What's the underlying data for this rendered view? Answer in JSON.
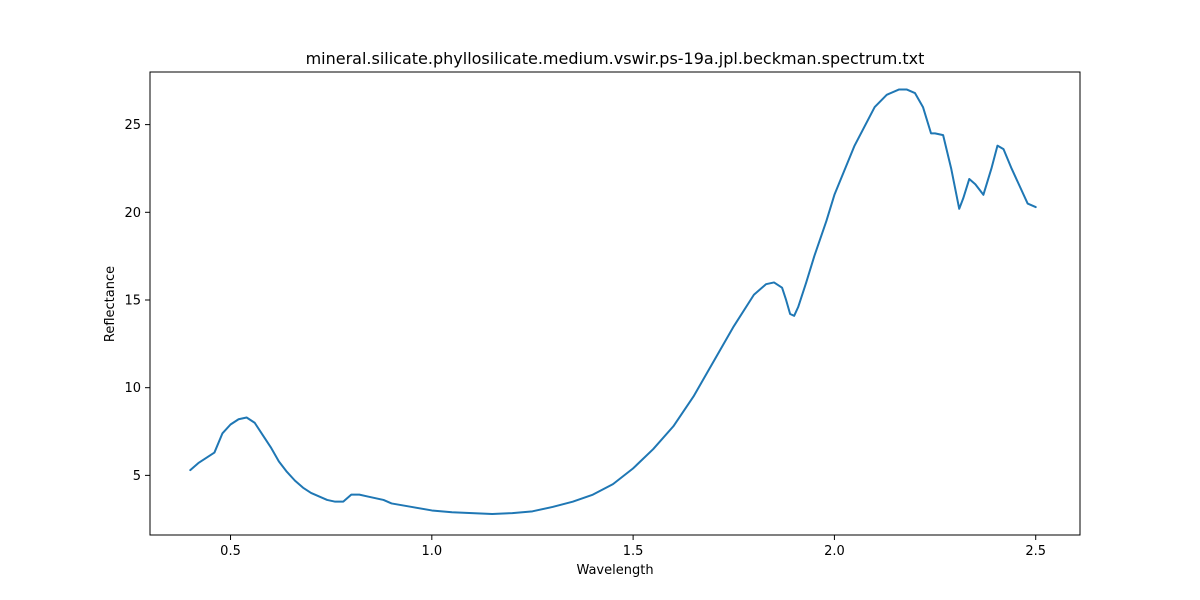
{
  "chart_data": {
    "type": "line",
    "title": "mineral.silicate.phyllosilicate.medium.vswir.ps-19a.jpl.beckman.spectrum.txt",
    "xlabel": "Wavelength",
    "ylabel": "Reflectance",
    "xlim": [
      0.3,
      2.61
    ],
    "ylim": [
      1.6,
      28.0
    ],
    "xticks": [
      0.5,
      1.0,
      1.5,
      2.0,
      2.5
    ],
    "xtick_labels": [
      "0.5",
      "1.0",
      "1.5",
      "2.0",
      "2.5"
    ],
    "yticks": [
      5,
      10,
      15,
      20,
      25
    ],
    "ytick_labels": [
      "5",
      "10",
      "15",
      "20",
      "25"
    ],
    "grid": false,
    "line_color": "#1f77b4",
    "series": [
      {
        "x": [
          0.4,
          0.42,
          0.44,
          0.46,
          0.48,
          0.5,
          0.52,
          0.54,
          0.56,
          0.58,
          0.6,
          0.62,
          0.64,
          0.66,
          0.68,
          0.7,
          0.72,
          0.74,
          0.76,
          0.78,
          0.79,
          0.8,
          0.82,
          0.84,
          0.86,
          0.88,
          0.9,
          0.95,
          1.0,
          1.05,
          1.1,
          1.15,
          1.2,
          1.25,
          1.3,
          1.35,
          1.4,
          1.45,
          1.5,
          1.55,
          1.6,
          1.65,
          1.7,
          1.75,
          1.8,
          1.83,
          1.85,
          1.87,
          1.88,
          1.89,
          1.9,
          1.91,
          1.93,
          1.95,
          1.98,
          2.0,
          2.05,
          2.1,
          2.13,
          2.16,
          2.18,
          2.2,
          2.22,
          2.24,
          2.25,
          2.27,
          2.29,
          2.31,
          2.32,
          2.335,
          2.35,
          2.37,
          2.39,
          2.405,
          2.42,
          2.44,
          2.46,
          2.48,
          2.5
        ],
        "y": [
          5.3,
          5.7,
          6.0,
          6.3,
          7.4,
          7.9,
          8.2,
          8.3,
          8.0,
          7.3,
          6.6,
          5.8,
          5.2,
          4.7,
          4.3,
          4.0,
          3.8,
          3.6,
          3.5,
          3.5,
          3.7,
          3.9,
          3.9,
          3.8,
          3.7,
          3.6,
          3.4,
          3.2,
          3.0,
          2.9,
          2.85,
          2.8,
          2.85,
          2.95,
          3.2,
          3.5,
          3.9,
          4.5,
          5.4,
          6.5,
          7.8,
          9.5,
          11.5,
          13.5,
          15.3,
          15.9,
          16.0,
          15.7,
          15.0,
          14.2,
          14.1,
          14.6,
          16.0,
          17.5,
          19.5,
          21.0,
          23.8,
          26.0,
          26.7,
          27.0,
          27.0,
          26.8,
          26.0,
          24.5,
          24.5,
          24.4,
          22.5,
          20.2,
          20.8,
          21.9,
          21.6,
          21.0,
          22.5,
          23.8,
          23.6,
          22.5,
          21.5,
          20.5,
          20.3
        ]
      }
    ]
  }
}
